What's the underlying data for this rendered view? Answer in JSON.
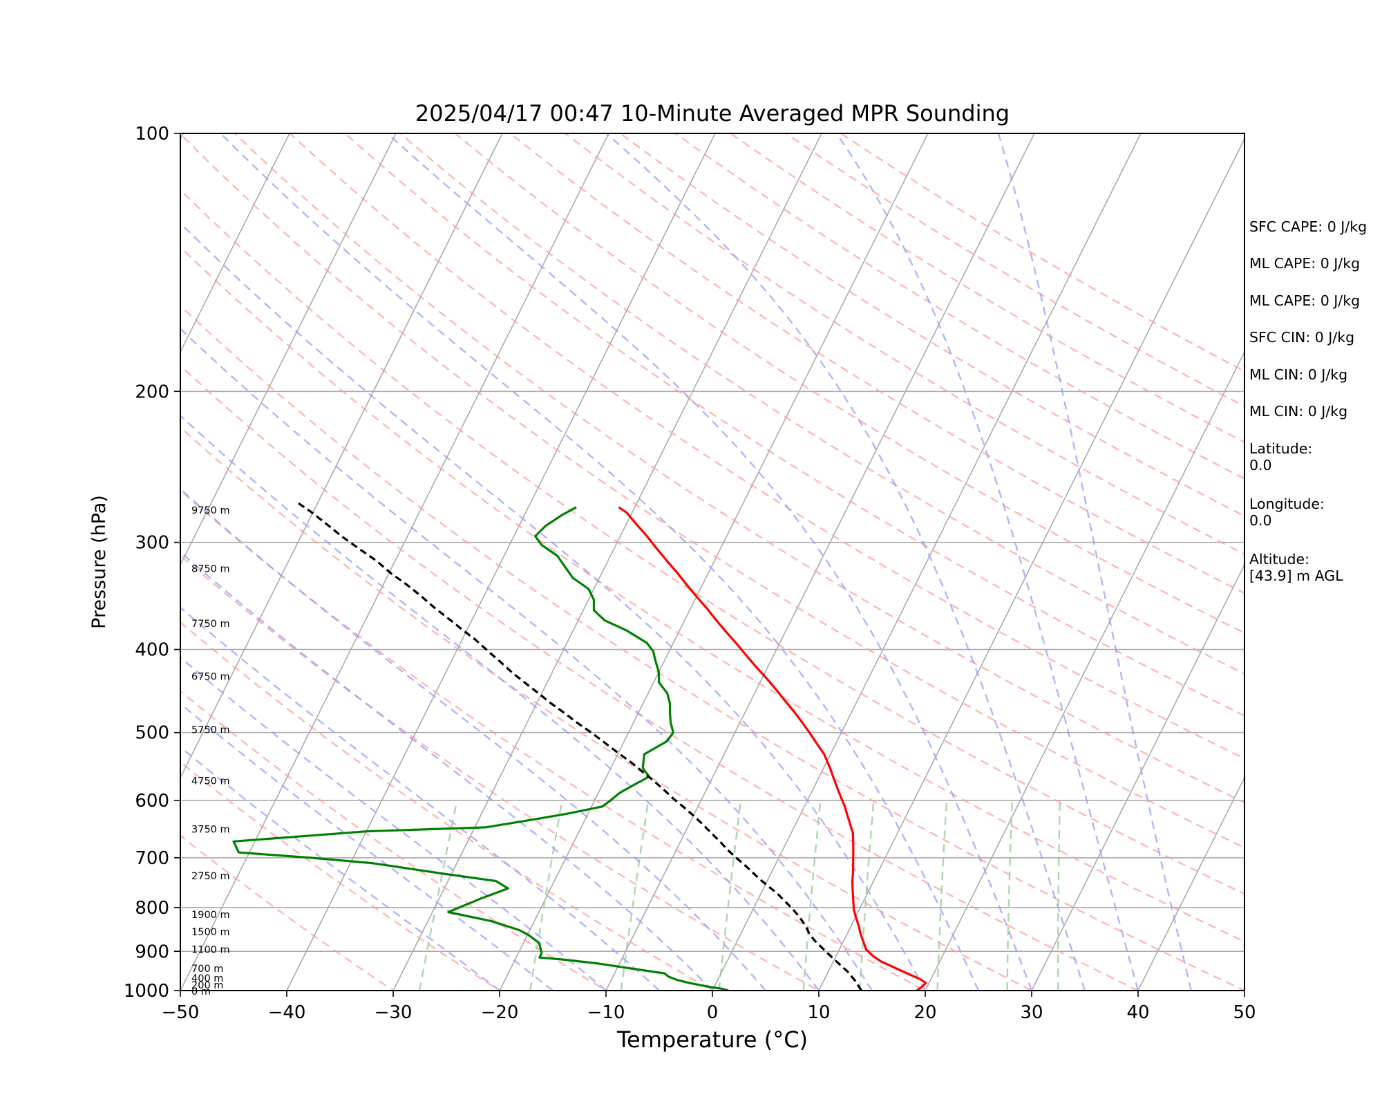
{
  "chart_data": {
    "type": "line",
    "title": "2025/04/17 00:47 10-Minute Averaged MPR Sounding",
    "xlabel": "Temperature (°C)",
    "ylabel": "Pressure (hPa)",
    "xlim": [
      -50,
      50
    ],
    "ylim": [
      1000,
      100
    ],
    "y_scale": "log",
    "x_ticks": [
      "−50",
      "−40",
      "−30",
      "−20",
      "−10",
      "0",
      "10",
      "20",
      "30",
      "40",
      "50"
    ],
    "y_ticks": [
      {
        "p": 100,
        "label": "100"
      },
      {
        "p": 200,
        "label": "200"
      },
      {
        "p": 300,
        "label": "300"
      },
      {
        "p": 400,
        "label": "400"
      },
      {
        "p": 500,
        "label": "500"
      },
      {
        "p": 600,
        "label": "600"
      },
      {
        "p": 700,
        "label": "700"
      },
      {
        "p": 800,
        "label": "800"
      },
      {
        "p": 900,
        "label": "900"
      },
      {
        "p": 1000,
        "label": "1000"
      }
    ],
    "grid": true,
    "skew_t": true,
    "series": [
      {
        "role": "temperature",
        "color": "#ff0000",
        "points": [
          [
            19.2,
            1000
          ],
          [
            19.5,
            990
          ],
          [
            19.7,
            980
          ],
          [
            19.0,
            970
          ],
          [
            18.0,
            960
          ],
          [
            16.5,
            945
          ],
          [
            14.5,
            925
          ],
          [
            13.5,
            912
          ],
          [
            12.5,
            895
          ],
          [
            12.0,
            880
          ],
          [
            11.3,
            860
          ],
          [
            10.7,
            840
          ],
          [
            10.0,
            820
          ],
          [
            9.5,
            805
          ],
          [
            9.0,
            785
          ],
          [
            8.5,
            765
          ],
          [
            8.0,
            745
          ],
          [
            7.6,
            725
          ],
          [
            7.0,
            700
          ],
          [
            6.5,
            680
          ],
          [
            5.8,
            655
          ],
          [
            4.7,
            630
          ],
          [
            3.8,
            610
          ],
          [
            3.0,
            595
          ],
          [
            2.2,
            580
          ],
          [
            1.4,
            565
          ],
          [
            0.6,
            550
          ],
          [
            -0.6,
            530
          ],
          [
            -1.8,
            515
          ],
          [
            -3.0,
            500
          ],
          [
            -4.3,
            485
          ],
          [
            -5.5,
            472
          ],
          [
            -6.8,
            459
          ],
          [
            -8.0,
            447
          ],
          [
            -9.5,
            433
          ],
          [
            -11.0,
            420
          ],
          [
            -12.5,
            407
          ],
          [
            -14.0,
            394
          ],
          [
            -15.5,
            382
          ],
          [
            -17.0,
            370
          ],
          [
            -18.5,
            358
          ],
          [
            -20.0,
            347
          ],
          [
            -21.5,
            336
          ],
          [
            -23.0,
            325
          ],
          [
            -24.5,
            315
          ],
          [
            -26.0,
            305
          ],
          [
            -27.5,
            295
          ],
          [
            -29.0,
            286
          ],
          [
            -30.5,
            277
          ],
          [
            -31.5,
            273
          ]
        ]
      },
      {
        "role": "dewpoint",
        "color": "#008000",
        "points": [
          [
            1.5,
            1000
          ],
          [
            0.8,
            995
          ],
          [
            -0.5,
            990
          ],
          [
            -2.5,
            980
          ],
          [
            -3.8,
            972
          ],
          [
            -4.8,
            963
          ],
          [
            -5.3,
            955
          ],
          [
            -8.0,
            945
          ],
          [
            -12.0,
            930
          ],
          [
            -15.5,
            920
          ],
          [
            -17.8,
            915
          ],
          [
            -17.8,
            905
          ],
          [
            -18.5,
            880
          ],
          [
            -20.0,
            860
          ],
          [
            -21.0,
            850
          ],
          [
            -24.0,
            830
          ],
          [
            -28.5,
            810
          ],
          [
            -26.0,
            780
          ],
          [
            -24.0,
            760
          ],
          [
            -25.5,
            745
          ],
          [
            -31.0,
            730
          ],
          [
            -38.0,
            710
          ],
          [
            -44.0,
            700
          ],
          [
            -51.0,
            690
          ],
          [
            -52.0,
            670
          ],
          [
            -40.0,
            652
          ],
          [
            -29.0,
            645
          ],
          [
            -25.0,
            632
          ],
          [
            -22.0,
            622
          ],
          [
            -19.0,
            610
          ],
          [
            -18.5,
            600
          ],
          [
            -18.0,
            588
          ],
          [
            -17.0,
            575
          ],
          [
            -16.0,
            563
          ],
          [
            -17.0,
            550
          ],
          [
            -17.5,
            530
          ],
          [
            -16.0,
            512
          ],
          [
            -15.8,
            500
          ],
          [
            -16.5,
            487
          ],
          [
            -17.0,
            475
          ],
          [
            -17.5,
            462
          ],
          [
            -18.2,
            450
          ],
          [
            -19.5,
            437
          ],
          [
            -20.0,
            425
          ],
          [
            -20.8,
            413
          ],
          [
            -21.5,
            402
          ],
          [
            -22.5,
            393
          ],
          [
            -25.0,
            380
          ],
          [
            -27.5,
            370
          ],
          [
            -29.0,
            360
          ],
          [
            -29.5,
            350
          ],
          [
            -30.5,
            340
          ],
          [
            -32.5,
            330
          ],
          [
            -33.8,
            320
          ],
          [
            -35.0,
            311
          ],
          [
            -37.0,
            302
          ],
          [
            -38.0,
            295
          ],
          [
            -37.5,
            287
          ],
          [
            -36.5,
            279
          ],
          [
            -35.5,
            273
          ]
        ]
      },
      {
        "role": "parcel",
        "color": "#000000",
        "points": [
          [
            14.0,
            1000
          ],
          [
            13.0,
            975
          ],
          [
            11.8,
            950
          ],
          [
            10.3,
            925
          ],
          [
            8.8,
            900
          ],
          [
            7.3,
            875
          ],
          [
            6.5,
            860
          ],
          [
            5.9,
            845
          ],
          [
            5.2,
            830
          ],
          [
            4.4,
            815
          ],
          [
            3.5,
            800
          ],
          [
            2.5,
            785
          ],
          [
            1.5,
            770
          ],
          [
            0.3,
            755
          ],
          [
            -0.9,
            740
          ],
          [
            -2.0,
            725
          ],
          [
            -3.0,
            712
          ],
          [
            -4.0,
            700
          ],
          [
            -5.2,
            685
          ],
          [
            -6.3,
            670
          ],
          [
            -7.5,
            655
          ],
          [
            -8.7,
            640
          ],
          [
            -10.0,
            625
          ],
          [
            -11.3,
            611
          ],
          [
            -12.7,
            597
          ],
          [
            -14.0,
            583
          ],
          [
            -15.4,
            569
          ],
          [
            -16.8,
            556
          ],
          [
            -18.2,
            543
          ],
          [
            -19.8,
            530
          ],
          [
            -21.5,
            516
          ],
          [
            -23.5,
            500
          ],
          [
            -25.3,
            487
          ],
          [
            -27.0,
            474
          ],
          [
            -28.7,
            462
          ],
          [
            -30.3,
            450
          ],
          [
            -32.0,
            438
          ],
          [
            -33.7,
            426
          ],
          [
            -35.3,
            414
          ],
          [
            -37.0,
            402
          ],
          [
            -38.7,
            390
          ],
          [
            -40.5,
            379
          ],
          [
            -42.3,
            368
          ],
          [
            -44.2,
            357
          ],
          [
            -46.0,
            346
          ],
          [
            -47.8,
            336
          ],
          [
            -49.8,
            326
          ],
          [
            -51.8,
            315
          ],
          [
            -54.0,
            305
          ],
          [
            -56.2,
            295
          ],
          [
            -58.3,
            285
          ],
          [
            -60.3,
            276
          ],
          [
            -61.8,
            270
          ]
        ]
      }
    ],
    "height_labels": [
      {
        "p": 275,
        "label": "9750 m"
      },
      {
        "p": 322,
        "label": "8750 m"
      },
      {
        "p": 373,
        "label": "7750 m"
      },
      {
        "p": 430,
        "label": "6750 m"
      },
      {
        "p": 496,
        "label": "5750 m"
      },
      {
        "p": 569,
        "label": "4750 m"
      },
      {
        "p": 648,
        "label": "3750 m"
      },
      {
        "p": 735,
        "label": "2750 m"
      },
      {
        "p": 815,
        "label": "1900 m"
      },
      {
        "p": 854,
        "label": "1500 m"
      },
      {
        "p": 895,
        "label": "1100 m"
      },
      {
        "p": 942,
        "label": "700 m"
      },
      {
        "p": 967,
        "label": "400 m"
      },
      {
        "p": 985,
        "label": "200 m"
      },
      {
        "p": 1002,
        "label": "0 m"
      }
    ],
    "reference_lines": {
      "isotherm_color": "#aaaaaa",
      "dry_adiabat_color": "#ff9999",
      "moist_adiabat_color": "#9999ff",
      "mixing_ratio_color": "#99cc99"
    }
  },
  "info": {
    "sfc_cape": "SFC CAPE: 0 J/kg",
    "ml_cape_1": "ML CAPE: 0 J/kg",
    "ml_cape_2": "ML CAPE: 0 J/kg",
    "sfc_cin": "SFC CIN: 0 J/kg",
    "ml_cin_1": "ML CIN: 0 J/kg",
    "ml_cin_2": "ML CIN: 0 J/kg",
    "latitude_label": "Latitude:",
    "latitude_value": "0.0",
    "longitude_label": "Longitude:",
    "longitude_value": "0.0",
    "altitude_label": "Altitude:",
    "altitude_value": "[43.9] m AGL"
  }
}
